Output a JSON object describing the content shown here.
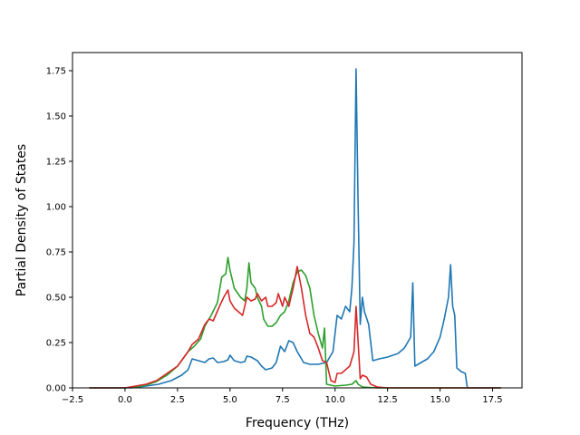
{
  "chart_data": {
    "type": "line",
    "title": "",
    "xlabel": "Frequency (THz)",
    "ylabel": "Partial Density of States",
    "xlim": [
      -2.5,
      18.9
    ],
    "ylim": [
      0,
      1.85
    ],
    "xticks": [
      -2.5,
      0.0,
      2.5,
      5.0,
      7.5,
      10.0,
      12.5,
      15.0,
      17.5
    ],
    "xtick_labels": [
      "−2.5",
      "0.0",
      "2.5",
      "5.0",
      "7.5",
      "10.0",
      "12.5",
      "15.0",
      "17.5"
    ],
    "yticks": [
      0.0,
      0.25,
      0.5,
      0.75,
      1.0,
      1.25,
      1.5,
      1.75
    ],
    "ytick_labels": [
      "0.00",
      "0.25",
      "0.50",
      "0.75",
      "1.00",
      "1.25",
      "1.50",
      "1.75"
    ],
    "grid": false,
    "series": [
      {
        "color": "#1f77b4",
        "points": [
          [
            -1.7,
            0
          ],
          [
            0.3,
            0
          ],
          [
            1.0,
            0.01
          ],
          [
            1.6,
            0.02
          ],
          [
            2.2,
            0.04
          ],
          [
            2.7,
            0.07
          ],
          [
            3.0,
            0.1
          ],
          [
            3.2,
            0.16
          ],
          [
            3.5,
            0.15
          ],
          [
            3.8,
            0.14
          ],
          [
            4.0,
            0.16
          ],
          [
            4.2,
            0.165
          ],
          [
            4.4,
            0.14
          ],
          [
            4.7,
            0.145
          ],
          [
            4.9,
            0.155
          ],
          [
            5.0,
            0.18
          ],
          [
            5.2,
            0.15
          ],
          [
            5.5,
            0.14
          ],
          [
            5.7,
            0.145
          ],
          [
            5.8,
            0.175
          ],
          [
            6.0,
            0.17
          ],
          [
            6.3,
            0.15
          ],
          [
            6.5,
            0.12
          ],
          [
            6.7,
            0.1
          ],
          [
            7.0,
            0.11
          ],
          [
            7.2,
            0.14
          ],
          [
            7.4,
            0.23
          ],
          [
            7.6,
            0.2
          ],
          [
            7.8,
            0.26
          ],
          [
            8.0,
            0.25
          ],
          [
            8.2,
            0.2
          ],
          [
            8.5,
            0.14
          ],
          [
            8.8,
            0.13
          ],
          [
            9.2,
            0.13
          ],
          [
            9.6,
            0.14
          ],
          [
            9.9,
            0.2
          ],
          [
            10.1,
            0.4
          ],
          [
            10.3,
            0.38
          ],
          [
            10.5,
            0.45
          ],
          [
            10.7,
            0.42
          ],
          [
            10.8,
            0.55
          ],
          [
            10.9,
            0.8
          ],
          [
            11.0,
            1.76
          ],
          [
            11.1,
            1.0
          ],
          [
            11.2,
            0.35
          ],
          [
            11.3,
            0.5
          ],
          [
            11.4,
            0.42
          ],
          [
            11.6,
            0.35
          ],
          [
            11.8,
            0.15
          ],
          [
            12.1,
            0.16
          ],
          [
            12.5,
            0.17
          ],
          [
            13.0,
            0.19
          ],
          [
            13.3,
            0.22
          ],
          [
            13.6,
            0.28
          ],
          [
            13.7,
            0.58
          ],
          [
            13.8,
            0.12
          ],
          [
            14.1,
            0.14
          ],
          [
            14.4,
            0.16
          ],
          [
            14.7,
            0.2
          ],
          [
            15.0,
            0.28
          ],
          [
            15.2,
            0.38
          ],
          [
            15.4,
            0.5
          ],
          [
            15.5,
            0.68
          ],
          [
            15.6,
            0.45
          ],
          [
            15.7,
            0.4
          ],
          [
            15.8,
            0.11
          ],
          [
            16.0,
            0.09
          ],
          [
            16.2,
            0.08
          ],
          [
            16.3,
            0
          ],
          [
            17.9,
            0
          ]
        ]
      },
      {
        "color": "#2ca02c",
        "points": [
          [
            -1.7,
            0
          ],
          [
            0.0,
            0
          ],
          [
            0.5,
            0.005
          ],
          [
            1.0,
            0.015
          ],
          [
            1.5,
            0.035
          ],
          [
            2.0,
            0.07
          ],
          [
            2.5,
            0.12
          ],
          [
            3.0,
            0.2
          ],
          [
            3.3,
            0.23
          ],
          [
            3.6,
            0.27
          ],
          [
            3.8,
            0.34
          ],
          [
            4.1,
            0.4
          ],
          [
            4.4,
            0.47
          ],
          [
            4.6,
            0.61
          ],
          [
            4.8,
            0.63
          ],
          [
            4.9,
            0.72
          ],
          [
            5.0,
            0.65
          ],
          [
            5.2,
            0.55
          ],
          [
            5.5,
            0.5
          ],
          [
            5.7,
            0.48
          ],
          [
            5.8,
            0.55
          ],
          [
            5.9,
            0.69
          ],
          [
            6.0,
            0.58
          ],
          [
            6.2,
            0.55
          ],
          [
            6.3,
            0.5
          ],
          [
            6.5,
            0.45
          ],
          [
            6.6,
            0.38
          ],
          [
            6.8,
            0.34
          ],
          [
            7.0,
            0.34
          ],
          [
            7.2,
            0.36
          ],
          [
            7.4,
            0.4
          ],
          [
            7.6,
            0.42
          ],
          [
            7.8,
            0.48
          ],
          [
            8.0,
            0.58
          ],
          [
            8.2,
            0.64
          ],
          [
            8.4,
            0.65
          ],
          [
            8.6,
            0.62
          ],
          [
            8.8,
            0.55
          ],
          [
            9.0,
            0.4
          ],
          [
            9.2,
            0.3
          ],
          [
            9.4,
            0.22
          ],
          [
            9.5,
            0.33
          ],
          [
            9.6,
            0.02
          ],
          [
            10.0,
            0.01
          ],
          [
            10.5,
            0.015
          ],
          [
            10.8,
            0.02
          ],
          [
            11.0,
            0.04
          ],
          [
            11.1,
            0.02
          ],
          [
            11.3,
            0.005
          ],
          [
            12.0,
            0
          ],
          [
            17.9,
            0
          ]
        ]
      },
      {
        "color": "#d62728",
        "points": [
          [
            -1.7,
            0
          ],
          [
            0.0,
            0
          ],
          [
            0.5,
            0.01
          ],
          [
            1.0,
            0.02
          ],
          [
            1.5,
            0.04
          ],
          [
            2.0,
            0.08
          ],
          [
            2.5,
            0.12
          ],
          [
            3.0,
            0.2
          ],
          [
            3.2,
            0.24
          ],
          [
            3.5,
            0.27
          ],
          [
            3.8,
            0.35
          ],
          [
            4.0,
            0.38
          ],
          [
            4.2,
            0.37
          ],
          [
            4.5,
            0.45
          ],
          [
            4.7,
            0.5
          ],
          [
            4.9,
            0.54
          ],
          [
            5.0,
            0.48
          ],
          [
            5.2,
            0.44
          ],
          [
            5.4,
            0.42
          ],
          [
            5.6,
            0.4
          ],
          [
            5.8,
            0.5
          ],
          [
            6.0,
            0.48
          ],
          [
            6.2,
            0.49
          ],
          [
            6.3,
            0.52
          ],
          [
            6.5,
            0.48
          ],
          [
            6.7,
            0.5
          ],
          [
            6.8,
            0.45
          ],
          [
            7.0,
            0.45
          ],
          [
            7.2,
            0.47
          ],
          [
            7.3,
            0.52
          ],
          [
            7.5,
            0.45
          ],
          [
            7.6,
            0.5
          ],
          [
            7.8,
            0.45
          ],
          [
            8.0,
            0.55
          ],
          [
            8.2,
            0.67
          ],
          [
            8.4,
            0.55
          ],
          [
            8.6,
            0.4
          ],
          [
            8.8,
            0.3
          ],
          [
            9.0,
            0.28
          ],
          [
            9.2,
            0.22
          ],
          [
            9.4,
            0.15
          ],
          [
            9.6,
            0.14
          ],
          [
            9.8,
            0.04
          ],
          [
            10.0,
            0.03
          ],
          [
            10.1,
            0.08
          ],
          [
            10.3,
            0.08
          ],
          [
            10.5,
            0.1
          ],
          [
            10.7,
            0.12
          ],
          [
            10.9,
            0.2
          ],
          [
            11.0,
            0.45
          ],
          [
            11.1,
            0.25
          ],
          [
            11.2,
            0.05
          ],
          [
            11.3,
            0.07
          ],
          [
            11.5,
            0.06
          ],
          [
            11.7,
            0.02
          ],
          [
            12.0,
            0.005
          ],
          [
            12.5,
            0
          ],
          [
            17.9,
            0
          ]
        ]
      }
    ]
  }
}
